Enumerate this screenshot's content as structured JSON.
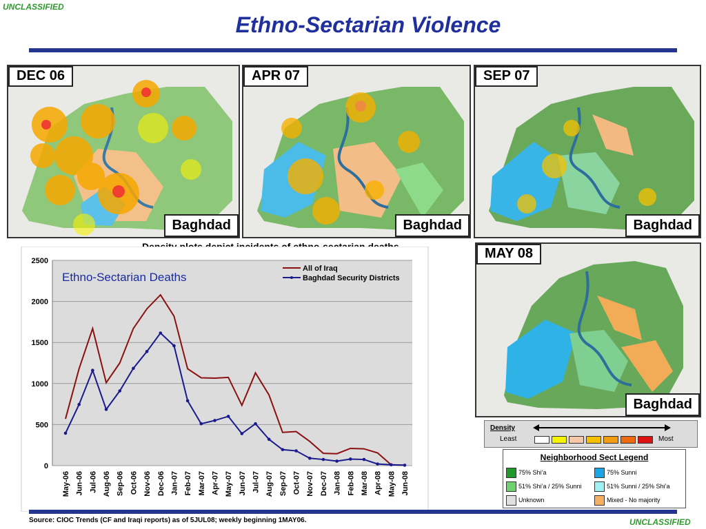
{
  "classification_top": "UNCLASSIFIED",
  "classification_bottom": "UNCLASSIFIED",
  "title": "Ethno-Sectarian Violence",
  "maps": [
    {
      "date": "DEC 06",
      "label": "Baghdad"
    },
    {
      "date": "APR 07",
      "label": "Baghdad"
    },
    {
      "date": "SEP 07",
      "label": "Baghdad"
    },
    {
      "date": "MAY 08",
      "label": "Baghdad"
    }
  ],
  "density_note": "Density plots depict incidents of ethno-sectarian deaths.",
  "density_legend": {
    "title": "Density",
    "least": "Least",
    "most": "Most",
    "colors": [
      "#ffffff",
      "#f5f500",
      "#f6c8a8",
      "#f6c000",
      "#f39c12",
      "#ee6a10",
      "#dd1111"
    ]
  },
  "sect_legend": {
    "title": "Neighborhood Sect Legend",
    "items": [
      {
        "label": "75% Shi’a",
        "color": "#1f9a2a"
      },
      {
        "label": "75% Sunni",
        "color": "#1aa6e6"
      },
      {
        "label": "51% Shi’a / 25% Sunni",
        "color": "#6fd06f"
      },
      {
        "label": "51% Sunni / 25% Shi’a",
        "color": "#9ff0f0"
      },
      {
        "label": "Unknown",
        "color": "#e0e0e0"
      },
      {
        "label": "Mixed - No majority",
        "color": "#f4b060"
      }
    ]
  },
  "source": "Source:  CIOC Trends (CF and Iraqi reports) as of  5JUL08; weekly beginning 1MAY06.",
  "chart_data": {
    "type": "line",
    "title": "Ethno-Sectarian Deaths",
    "xlabel": "",
    "ylabel": "",
    "ylim": [
      0,
      2500
    ],
    "yticks": [
      0,
      500,
      1000,
      1500,
      2000,
      2500
    ],
    "grid": true,
    "legend_position": "top-right",
    "categories": [
      "May-06",
      "Jun-06",
      "Jul-06",
      "Aug-06",
      "Sep-06",
      "Oct-06",
      "Nov-06",
      "Dec-06",
      "Jan-07",
      "Feb-07",
      "Mar-07",
      "Apr-07",
      "May-07",
      "Jun-07",
      "Jul-07",
      "Aug-07",
      "Sep-07",
      "Oct-07",
      "Nov-07",
      "Dec-07",
      "Jan-08",
      "Feb-08",
      "Mar-08",
      "Apr-08",
      "May-08",
      "Jun-08"
    ],
    "series": [
      {
        "name": "All of Iraq",
        "color": "#8b1010",
        "marker": "none",
        "values": [
          570,
          1180,
          1670,
          1010,
          1250,
          1670,
          1910,
          2080,
          1820,
          1180,
          1070,
          1065,
          1075,
          735,
          1130,
          860,
          405,
          415,
          295,
          150,
          145,
          210,
          205,
          155,
          10,
          5
        ]
      },
      {
        "name": "Baghdad Security Districts",
        "color": "#1a1a8c",
        "marker": "dot",
        "values": [
          395,
          745,
          1160,
          685,
          910,
          1185,
          1390,
          1615,
          1460,
          790,
          510,
          550,
          600,
          390,
          510,
          320,
          195,
          180,
          90,
          75,
          55,
          80,
          75,
          20,
          10,
          5
        ]
      }
    ]
  }
}
